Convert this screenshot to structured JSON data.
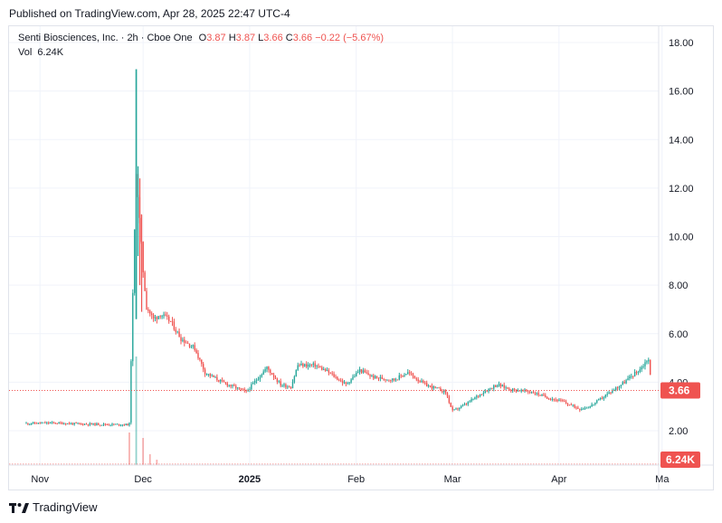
{
  "header": {
    "published": "Published on TradingView.com, Apr 28, 2025 22:47 UTC-4"
  },
  "legend": {
    "name": "Senti Biosciences, Inc. · 2h · Cboe One",
    "o_label": "O",
    "o_value": "3.87",
    "h_label": "H",
    "h_value": "3.87",
    "l_label": "L",
    "l_value": "3.66",
    "c_label": "C",
    "c_value": "3.66",
    "change": "−0.22 (−5.67%)",
    "vol_label": "Vol",
    "vol_value": "6.24K"
  },
  "footer": {
    "brand": "TradingView"
  },
  "colors": {
    "up": "#26a69a",
    "down": "#ef5350",
    "grid": "#f0f3fa",
    "text": "#131722"
  },
  "chart_data": {
    "type": "candlestick",
    "symbol": "Senti Biosciences, Inc.",
    "interval": "2h",
    "exchange": "Cboe One",
    "ylim": [
      1.0,
      18.5
    ],
    "y_ticks": [
      "2.00",
      "4.00",
      "6.00",
      "8.00",
      "10.00",
      "12.00",
      "14.00",
      "16.00",
      "18.00"
    ],
    "x_ticks": [
      "Nov",
      "Dec",
      "2025",
      "Feb",
      "Mar",
      "Apr",
      "Ma"
    ],
    "last_price": "3.66",
    "last_volume": "6.24K",
    "price_path": [
      [
        "2024-10-28",
        2.3
      ],
      [
        "2024-11-05",
        2.32
      ],
      [
        "2024-11-12",
        2.28
      ],
      [
        "2024-11-20",
        2.26
      ],
      [
        "2024-11-27",
        2.25
      ],
      [
        "2024-11-29",
        12.8
      ],
      [
        "2024-12-01",
        8.6
      ],
      [
        "2024-12-02",
        7.1
      ],
      [
        "2024-12-04",
        6.6
      ],
      [
        "2024-12-06",
        6.8
      ],
      [
        "2024-12-09",
        6.5
      ],
      [
        "2024-12-12",
        5.8
      ],
      [
        "2024-12-16",
        5.4
      ],
      [
        "2024-12-19",
        4.4
      ],
      [
        "2024-12-24",
        4.0
      ],
      [
        "2024-12-31",
        3.6
      ],
      [
        "2025-01-06",
        4.6
      ],
      [
        "2025-01-10",
        3.9
      ],
      [
        "2025-01-13",
        3.8
      ],
      [
        "2025-01-15",
        4.7
      ],
      [
        "2025-01-20",
        4.7
      ],
      [
        "2025-01-24",
        4.4
      ],
      [
        "2025-01-29",
        3.9
      ],
      [
        "2025-02-02",
        4.5
      ],
      [
        "2025-02-06",
        4.2
      ],
      [
        "2025-02-12",
        4.1
      ],
      [
        "2025-02-16",
        4.4
      ],
      [
        "2025-02-21",
        3.9
      ],
      [
        "2025-02-27",
        3.6
      ],
      [
        "2025-03-01",
        2.8
      ],
      [
        "2025-03-05",
        3.1
      ],
      [
        "2025-03-10",
        3.6
      ],
      [
        "2025-03-14",
        3.9
      ],
      [
        "2025-03-18",
        3.7
      ],
      [
        "2025-03-24",
        3.6
      ],
      [
        "2025-03-28",
        3.4
      ],
      [
        "2025-04-02",
        3.2
      ],
      [
        "2025-04-07",
        2.9
      ],
      [
        "2025-04-10",
        3.0
      ],
      [
        "2025-04-15",
        3.5
      ],
      [
        "2025-04-20",
        4.0
      ],
      [
        "2025-04-25",
        4.6
      ],
      [
        "2025-04-27",
        5.0
      ],
      [
        "2025-04-28",
        3.66
      ]
    ],
    "volume_spikes": [
      [
        "2024-11-27",
        0.3
      ],
      [
        "2024-11-29",
        1.0
      ],
      [
        "2024-12-01",
        0.25
      ],
      [
        "2024-12-03",
        0.1
      ],
      [
        "2024-12-05",
        0.05
      ]
    ]
  }
}
